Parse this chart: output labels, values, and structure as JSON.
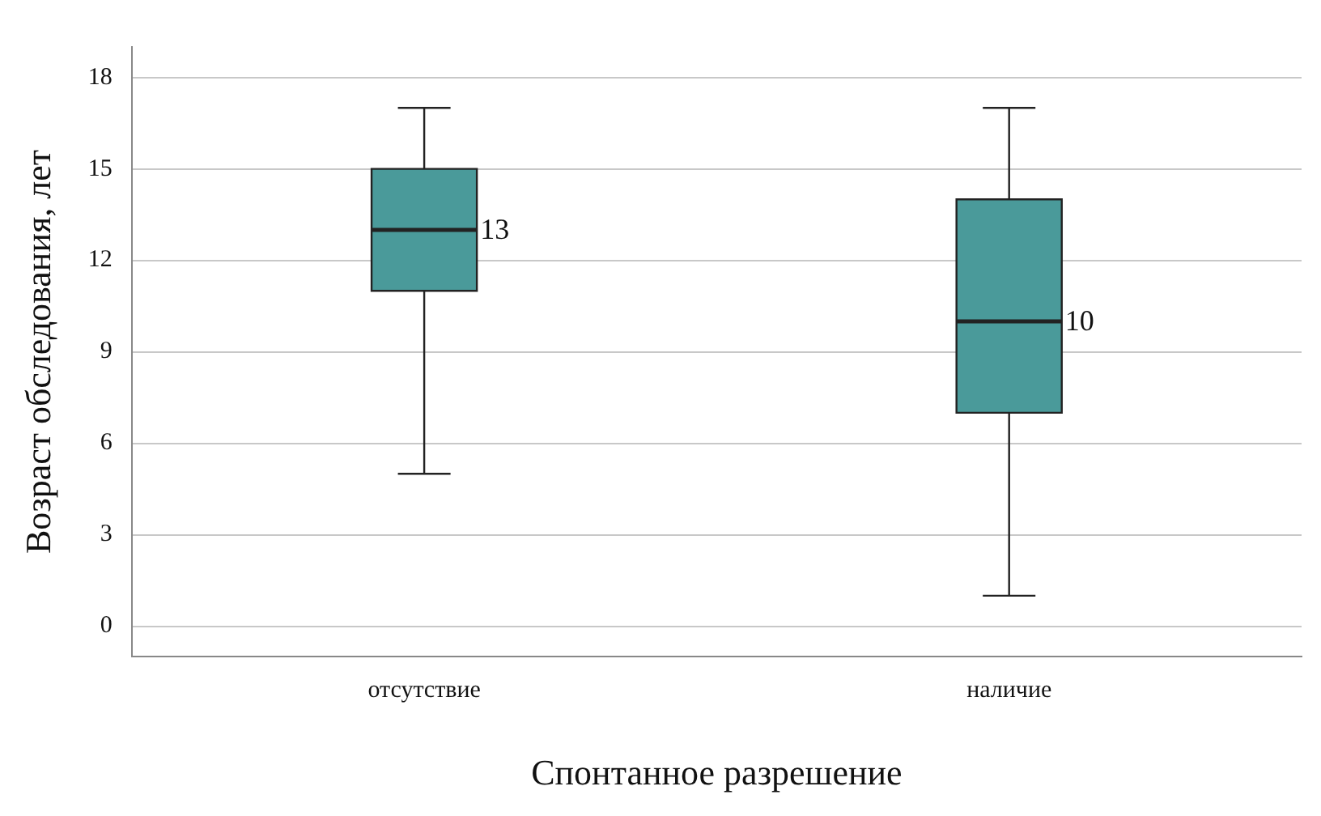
{
  "chart_data": {
    "type": "box",
    "xlabel": "Спонтанное разрешение",
    "ylabel": "Возраст обследования, лет",
    "categories": [
      "отсутствие",
      "наличие"
    ],
    "boxes": [
      {
        "low": 5,
        "q1": 11,
        "median": 13,
        "q3": 15,
        "high": 17
      },
      {
        "low": 1,
        "q1": 7,
        "median": 10,
        "q3": 14,
        "high": 17
      }
    ],
    "color": "#4a9a9a",
    "ylim": [
      -1,
      19
    ],
    "yticks": [
      0,
      3,
      6,
      9,
      12,
      15,
      18
    ],
    "grid": "y",
    "value_labels": [
      "13",
      "10"
    ]
  }
}
